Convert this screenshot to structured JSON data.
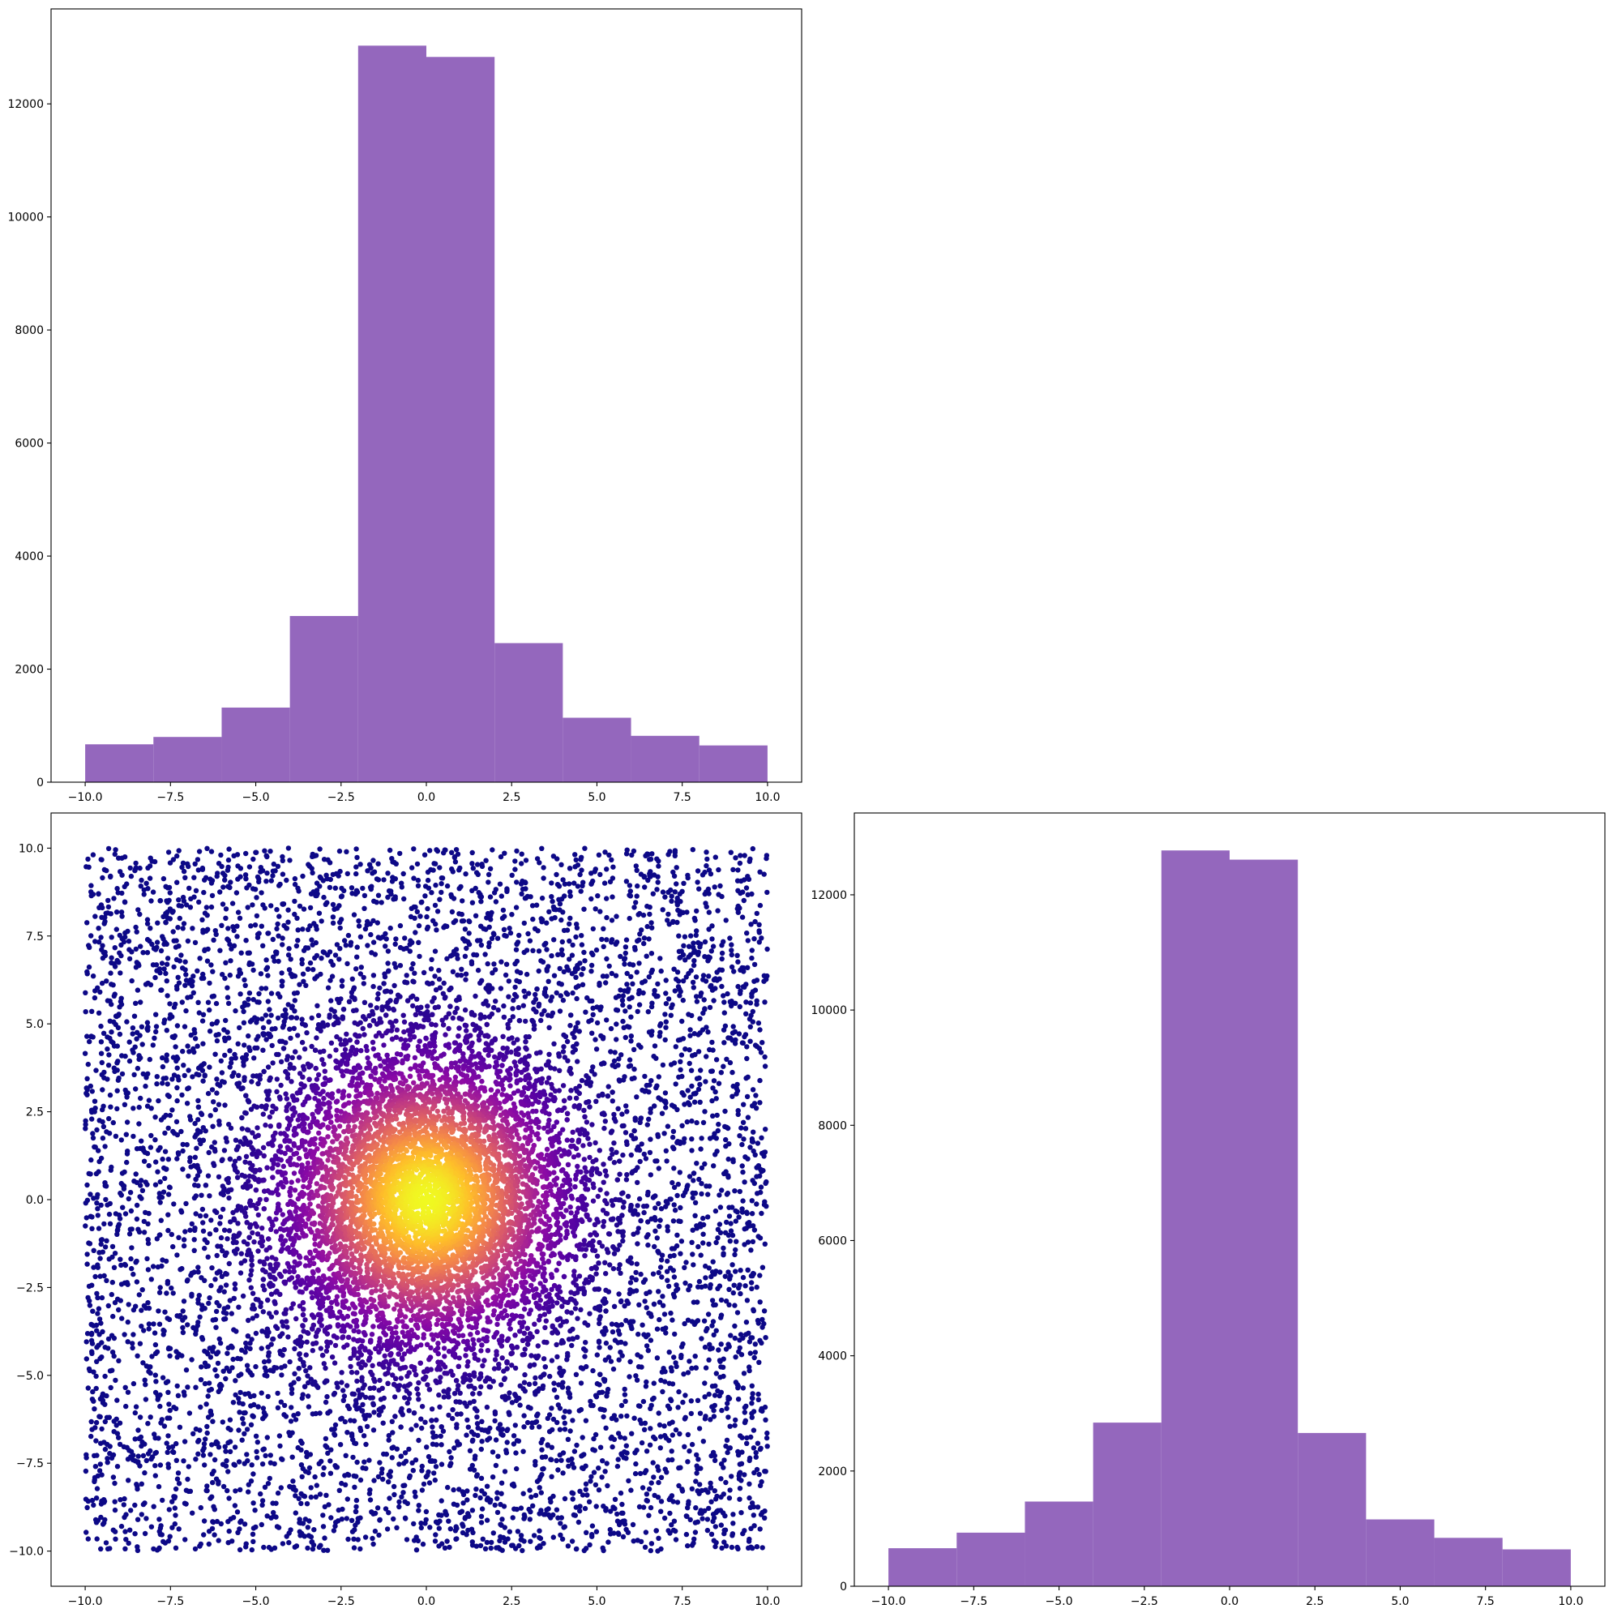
{
  "figure": {
    "layout": "2x2 corner plot (top-right panel empty)"
  },
  "chart_data": [
    {
      "panel": "top-left",
      "type": "bar",
      "title": "",
      "xlabel": "",
      "ylabel": "",
      "bar_color": "#9467bd",
      "bin_edges": [
        -10,
        -8,
        -6,
        -4,
        -2,
        0,
        2,
        4,
        6,
        8,
        10
      ],
      "values": [
        670,
        800,
        1320,
        2940,
        13030,
        12830,
        2460,
        1140,
        820,
        650
      ],
      "xlim": [
        -11,
        11
      ],
      "ylim": [
        0,
        13680
      ],
      "xticks": [
        -10,
        -7.5,
        -5,
        -2.5,
        0,
        2.5,
        5,
        7.5,
        10
      ],
      "xtick_labels": [
        "−10.0",
        "−7.5",
        "−5.0",
        "−2.5",
        "0.0",
        "2.5",
        "5.0",
        "7.5",
        "10.0"
      ],
      "yticks": [
        0,
        2000,
        4000,
        6000,
        8000,
        10000,
        12000
      ],
      "ytick_labels": [
        "0",
        "2000",
        "4000",
        "6000",
        "8000",
        "10000",
        "12000"
      ],
      "grid": false
    },
    {
      "panel": "bottom-left",
      "type": "scatter",
      "title": "",
      "xlabel": "",
      "ylabel": "",
      "description_of_points": "about 20000 points in [-10,10]x[-10,10]: a uniform background plus a dense Gaussian core centred at (0,0); points coloured by local density with the plasma colormap (dark blue sparse -> yellow dense)",
      "colormap": [
        "#0d0887",
        "#5402a3",
        "#8b0aa5",
        "#b93289",
        "#db5c68",
        "#f48849",
        "#febd2a",
        "#f0f921"
      ],
      "xlim": [
        -11,
        11
      ],
      "ylim": [
        -11,
        11
      ],
      "xticks": [
        -10,
        -7.5,
        -5,
        -2.5,
        0,
        2.5,
        5,
        7.5,
        10
      ],
      "xtick_labels": [
        "−10.0",
        "−7.5",
        "−5.0",
        "−2.5",
        "0.0",
        "2.5",
        "5.0",
        "7.5",
        "10.0"
      ],
      "yticks": [
        -10,
        -7.5,
        -5,
        -2.5,
        0,
        2.5,
        5,
        7.5,
        10
      ],
      "ytick_labels": [
        "−10.0",
        "−7.5",
        "−5.0",
        "−2.5",
        "0.0",
        "2.5",
        "5.0",
        "7.5",
        "10.0"
      ],
      "grid": false
    },
    {
      "panel": "bottom-right",
      "type": "bar",
      "title": "",
      "xlabel": "",
      "ylabel": "",
      "bar_color": "#9467bd",
      "bin_edges": [
        -10,
        -8,
        -6,
        -4,
        -2,
        0,
        2,
        4,
        6,
        8,
        10
      ],
      "values": [
        660,
        930,
        1470,
        2840,
        12770,
        12610,
        2660,
        1160,
        840,
        640
      ],
      "xlim": [
        -11,
        11
      ],
      "ylim": [
        0,
        13420
      ],
      "xticks": [
        -10,
        -7.5,
        -5,
        -2.5,
        0,
        2.5,
        5,
        7.5,
        10
      ],
      "xtick_labels": [
        "−10.0",
        "−7.5",
        "−5.0",
        "−2.5",
        "0.0",
        "2.5",
        "5.0",
        "7.5",
        "10.0"
      ],
      "yticks": [
        0,
        2000,
        4000,
        6000,
        8000,
        10000,
        12000
      ],
      "ytick_labels": [
        "0",
        "2000",
        "4000",
        "6000",
        "8000",
        "10000",
        "12000"
      ],
      "grid": false
    }
  ]
}
